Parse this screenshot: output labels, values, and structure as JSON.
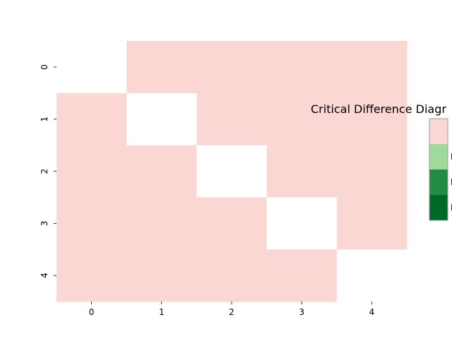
{
  "chart_data": {
    "type": "heatmap",
    "title": "Critical Difference Diagr",
    "x_ticks": [
      "0",
      "1",
      "2",
      "3",
      "4"
    ],
    "y_ticks": [
      "0",
      "1",
      "2",
      "3",
      "4"
    ],
    "matrix": [
      [
        null,
        "NS",
        "NS",
        "NS",
        "NS"
      ],
      [
        "NS",
        null,
        "NS",
        "NS",
        "NS"
      ],
      [
        "NS",
        "NS",
        null,
        "NS",
        "NS"
      ],
      [
        "NS",
        "NS",
        "NS",
        null,
        "NS"
      ],
      [
        "NS",
        "NS",
        "NS",
        "NS",
        null
      ]
    ],
    "legend": {
      "entries": [
        {
          "key": "NS",
          "label": "",
          "color": "#fbd7d4"
        },
        {
          "key": "p1",
          "label": "I",
          "color": "#a0d99b"
        },
        {
          "key": "p2",
          "label": "I",
          "color": "#238b45"
        },
        {
          "key": "p3",
          "label": "I",
          "color": "#00692a"
        }
      ]
    },
    "colors": {
      "nan": "#ffffff",
      "tick": "#000000",
      "legend_border": "#999999"
    }
  }
}
